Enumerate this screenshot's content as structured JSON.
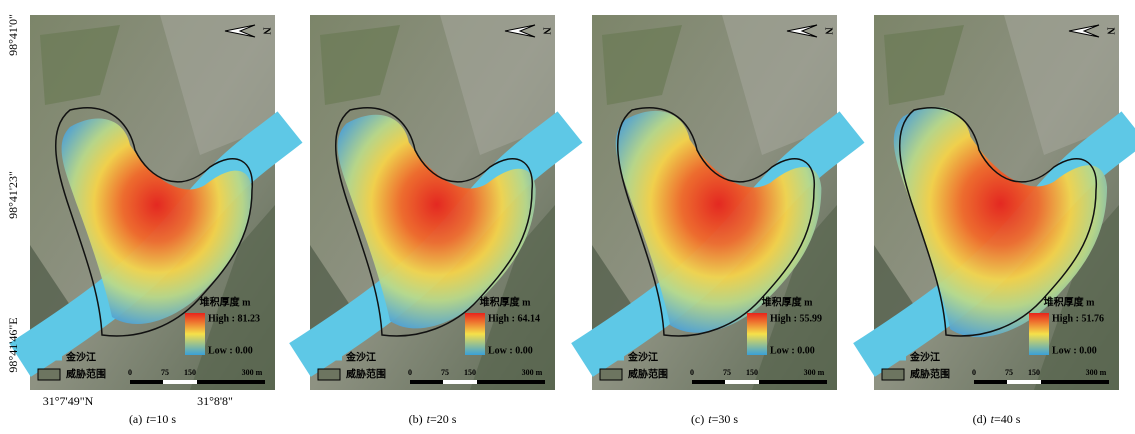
{
  "coordinates": {
    "longitude": [
      "98°41'0\"",
      "98°41'23\"",
      "98°41'46\"E"
    ],
    "latitude": [
      "31°7'49\"N",
      "31°8'8\""
    ]
  },
  "legend": {
    "title": "堆积厚度 m",
    "low": "Low : 0.00",
    "river": "金沙江",
    "threat": "威胁范围",
    "scale": [
      "0",
      "75",
      "150",
      "300 m"
    ],
    "north": "N"
  },
  "panels": [
    {
      "high": "High : 81.23",
      "caption": {
        "label": "(a)",
        "variable": "t",
        "value": "=10 s"
      }
    },
    {
      "high": "High : 64.14",
      "caption": {
        "label": "(b)",
        "variable": "t",
        "value": "=20 s"
      }
    },
    {
      "high": "High : 55.99",
      "caption": {
        "label": "(c)",
        "variable": "t",
        "value": "=30 s"
      }
    },
    {
      "high": "High : 51.76",
      "caption": {
        "label": "(d)",
        "variable": "t",
        "value": "=40 s"
      }
    }
  ]
}
